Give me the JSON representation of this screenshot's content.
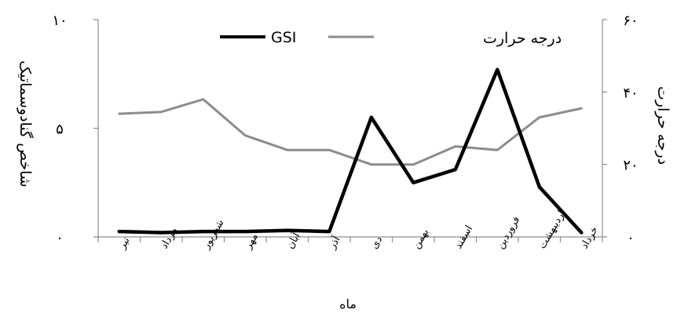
{
  "chart_data": {
    "type": "line",
    "categories": [
      "تیر",
      "مرداد",
      "شهریور",
      "مهر",
      "آبان",
      "آذر",
      "دی",
      "بهمن",
      "اسفند",
      "فروردین",
      "اردیبهشت",
      "خرداد"
    ],
    "series": [
      {
        "name": "GSI",
        "axis": "left",
        "color": "#000000",
        "values": [
          0.25,
          0.2,
          0.25,
          0.25,
          0.3,
          0.25,
          5.5,
          2.5,
          3.1,
          7.7,
          2.3,
          0.2
        ]
      },
      {
        "name": "درجه حرارت",
        "axis": "right",
        "color": "#8c8c8c",
        "values": [
          34,
          34.5,
          38,
          28,
          24,
          24,
          20,
          20,
          25,
          24,
          33,
          35.5
        ]
      }
    ],
    "xlabel": "ماه",
    "ylabel_left": "شاخص گنادوسماتیک",
    "ylabel_right": "درجه حرارت",
    "yticks_left": [
      "۰",
      "۵",
      "۱۰"
    ],
    "yticks_right": [
      "۰",
      "۲۰",
      "۴۰",
      "۶۰"
    ],
    "ylim_left": [
      0,
      10
    ],
    "ylim_right": [
      0,
      60
    ],
    "legend_position": "top-center",
    "grid": false
  }
}
